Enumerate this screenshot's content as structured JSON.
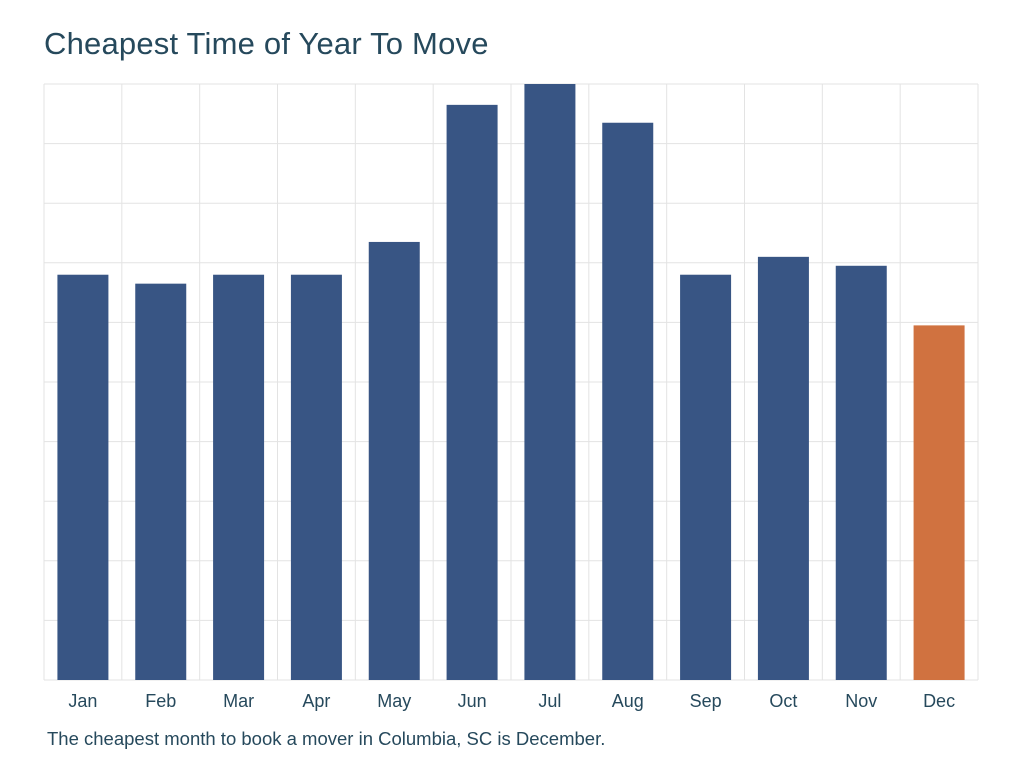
{
  "chart_data": {
    "type": "bar",
    "title": "Cheapest Time of Year To Move",
    "categories": [
      "Jan",
      "Feb",
      "Mar",
      "Apr",
      "May",
      "Jun",
      "Jul",
      "Aug",
      "Sep",
      "Oct",
      "Nov",
      "Dec"
    ],
    "values": [
      68,
      66.5,
      68,
      68,
      73.5,
      96.5,
      100,
      93.5,
      68,
      71,
      69.5,
      59.5
    ],
    "highlight_index": 11,
    "colors": {
      "bar": "#385584",
      "highlight": "#d07240",
      "grid": "#e3e3e3",
      "text": "#26495c"
    },
    "xlabel": "",
    "ylabel": "",
    "ylim": [
      0,
      100
    ],
    "grid": true,
    "y_tick_labels_shown": false,
    "legend": "none"
  },
  "caption": "The cheapest month to book a mover in Columbia, SC is December."
}
